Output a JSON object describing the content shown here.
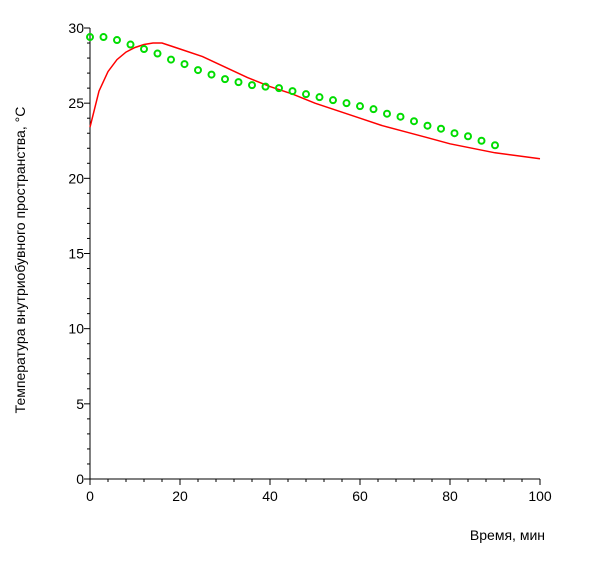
{
  "chart_data": {
    "type": "line",
    "title": "",
    "xlabel": "Время, мин",
    "ylabel": "Температура внутриобувного пространства, °C",
    "xlim": [
      0,
      100
    ],
    "ylim": [
      0,
      30
    ],
    "x_ticks": [
      0,
      20,
      40,
      60,
      80,
      100
    ],
    "y_ticks": [
      0,
      5,
      10,
      15,
      20,
      25,
      30
    ],
    "x_tick_labels": [
      "0",
      "20",
      "40",
      "60",
      "80",
      "100"
    ],
    "y_tick_labels": [
      "0",
      "5",
      "10",
      "15",
      "20",
      "25",
      "30"
    ],
    "grid": false,
    "legend": "none",
    "series": [
      {
        "style": "line",
        "color": "#ff0000",
        "x": [
          0,
          2,
          4,
          6,
          8,
          10,
          12,
          14,
          16,
          18,
          20,
          25,
          30,
          35,
          40,
          45,
          50,
          55,
          60,
          65,
          70,
          75,
          80,
          85,
          90,
          95,
          100
        ],
        "y": [
          23.4,
          25.8,
          27.1,
          27.9,
          28.4,
          28.7,
          28.9,
          29.0,
          29.0,
          28.8,
          28.6,
          28.1,
          27.4,
          26.7,
          26.1,
          25.6,
          25.0,
          24.5,
          24.0,
          23.5,
          23.1,
          22.7,
          22.3,
          22.0,
          21.7,
          21.5,
          21.3
        ]
      },
      {
        "style": "markers",
        "color": "#00dd00",
        "x": [
          0,
          3,
          6,
          9,
          12,
          15,
          18,
          21,
          24,
          27,
          30,
          33,
          36,
          39,
          42,
          45,
          48,
          51,
          54,
          57,
          60,
          63,
          66,
          69,
          72,
          75,
          78,
          81,
          84,
          87,
          90
        ],
        "y": [
          29.4,
          29.4,
          29.2,
          28.9,
          28.6,
          28.3,
          27.9,
          27.6,
          27.2,
          26.9,
          26.6,
          26.4,
          26.2,
          26.1,
          26.0,
          25.8,
          25.6,
          25.4,
          25.2,
          25.0,
          24.8,
          24.6,
          24.3,
          24.1,
          23.8,
          23.5,
          23.3,
          23.0,
          22.8,
          22.5,
          22.2
        ]
      }
    ]
  }
}
